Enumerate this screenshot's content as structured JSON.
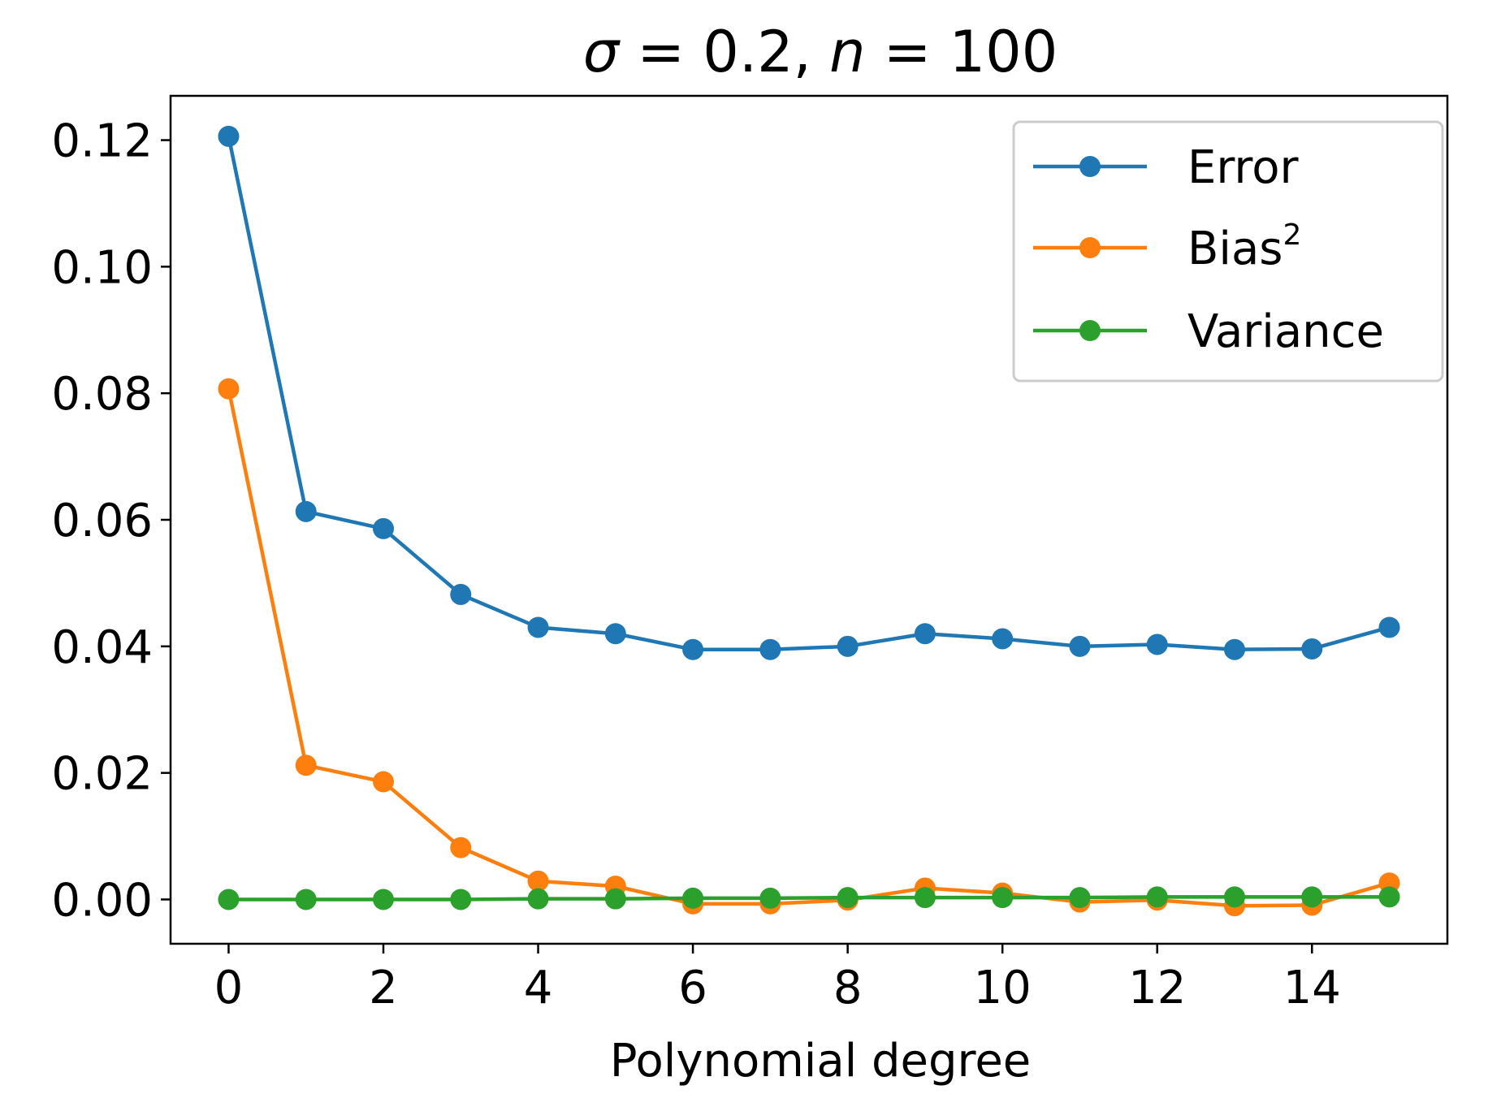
{
  "chart_data": {
    "type": "line",
    "title": {
      "sigma_symbol": "σ",
      "sigma_equals": " = 0.2, ",
      "n_symbol": "n",
      "n_equals": " = 100"
    },
    "xlabel": "Polynomial degree",
    "ylabel": "",
    "xlim": [
      -0.75,
      15.75
    ],
    "ylim": [
      -0.007,
      0.127
    ],
    "x_ticks": [
      0,
      2,
      4,
      6,
      8,
      10,
      12,
      14
    ],
    "x_tick_labels": [
      "0",
      "2",
      "4",
      "6",
      "8",
      "10",
      "12",
      "14"
    ],
    "y_ticks": [
      0.0,
      0.02,
      0.04,
      0.06,
      0.08,
      0.1,
      0.12
    ],
    "y_tick_labels": [
      "0.00",
      "0.02",
      "0.04",
      "0.06",
      "0.08",
      "0.10",
      "0.12"
    ],
    "grid": false,
    "legend_position": "top-right",
    "x": [
      0,
      1,
      2,
      3,
      4,
      5,
      6,
      7,
      8,
      9,
      10,
      11,
      12,
      13,
      14,
      15
    ],
    "series": [
      {
        "name": "Error",
        "color": "#1f77b4",
        "values": [
          0.1206,
          0.0613,
          0.0586,
          0.0482,
          0.043,
          0.042,
          0.0395,
          0.0395,
          0.04,
          0.042,
          0.0412,
          0.04,
          0.0403,
          0.0395,
          0.0396,
          0.043
        ]
      },
      {
        "name": "Bias",
        "name_superscript": "2",
        "color": "#ff7f0e",
        "values": [
          0.0807,
          0.0212,
          0.0186,
          0.0082,
          0.0029,
          0.0021,
          -0.0007,
          -0.0007,
          -0.0001,
          0.0018,
          0.001,
          -0.0004,
          -0.0001,
          -0.001,
          -0.0009,
          0.0026
        ]
      },
      {
        "name": "Variance",
        "color": "#2ca02c",
        "values": [
          0.0,
          0.0,
          0.0,
          0.0,
          0.0001,
          0.0001,
          0.0002,
          0.0002,
          0.0003,
          0.0003,
          0.0003,
          0.0003,
          0.0004,
          0.0004,
          0.0004,
          0.0004
        ]
      }
    ]
  }
}
